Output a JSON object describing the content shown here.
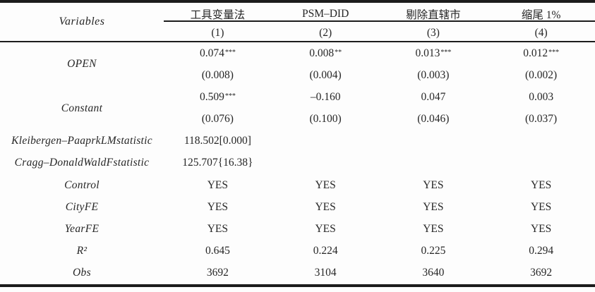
{
  "table": {
    "header": {
      "variables_label": "Variables",
      "columns": [
        {
          "group": "工具变量法",
          "number": "(1)"
        },
        {
          "group": "PSM–DID",
          "number": "(2)"
        },
        {
          "group": "剔除直辖市",
          "number": "(3)"
        },
        {
          "group": "缩尾 1%",
          "number": "(4)"
        }
      ]
    },
    "body": {
      "open": {
        "label": "OPEN",
        "coefs": [
          "0.074",
          "0.008",
          "0.013",
          "0.012"
        ],
        "stars": [
          "***",
          "**",
          "***",
          "***"
        ],
        "se": [
          "(0.008)",
          "(0.004)",
          "(0.003)",
          "(0.002)"
        ]
      },
      "constant": {
        "label": "Constant",
        "coefs": [
          "0.509",
          "–0.160",
          "0.047",
          "0.003"
        ],
        "stars": [
          "***",
          "",
          "",
          ""
        ],
        "se": [
          "(0.076)",
          "(0.100)",
          "(0.046)",
          "(0.037)"
        ]
      },
      "kp_lm": {
        "label": "Kleibergen–PaaprkLMstatistic",
        "value": "118.502[0.000]"
      },
      "cd_wald": {
        "label": "Cragg–DonaldWaldFstatistic",
        "value": "125.707{16.38}"
      },
      "control": {
        "label": "Control",
        "values": [
          "YES",
          "YES",
          "YES",
          "YES"
        ]
      },
      "city_fe": {
        "label": "CityFE",
        "values": [
          "YES",
          "YES",
          "YES",
          "YES"
        ]
      },
      "year_fe": {
        "label": "YearFE",
        "values": [
          "YES",
          "YES",
          "YES",
          "YES"
        ]
      },
      "r2": {
        "label": "R²",
        "values": [
          "0.645",
          "0.224",
          "0.225",
          "0.294"
        ]
      },
      "obs": {
        "label": "Obs",
        "values": [
          "3692",
          "3104",
          "3640",
          "3692"
        ]
      }
    }
  }
}
